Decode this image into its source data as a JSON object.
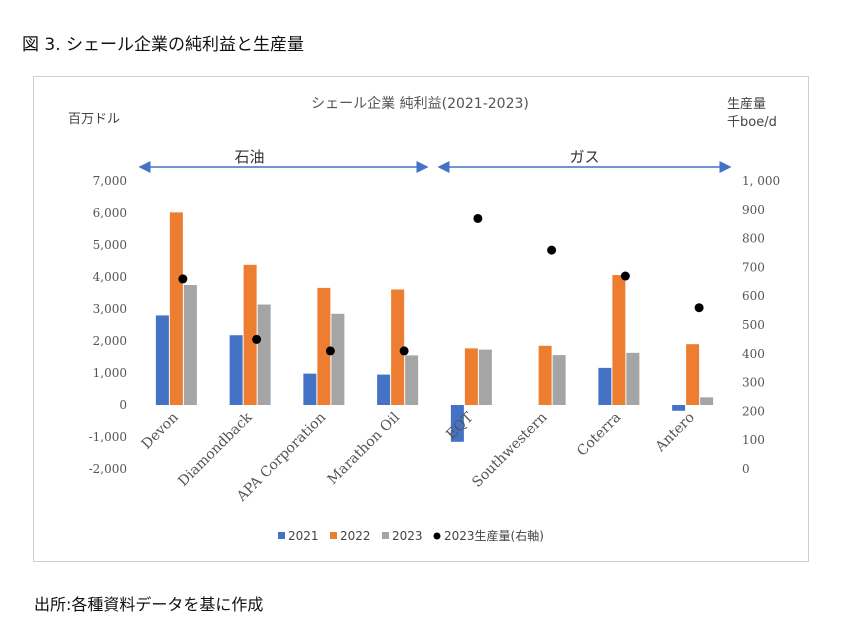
{
  "figure_title": "図 3. シェール企業の純利益と生産量",
  "source": "出所:各種資料データを基に作成",
  "colors": {
    "s2021": "#4472C4",
    "s2022": "#ED7D31",
    "s2023": "#A5A5A5",
    "dot": "#000000",
    "arrow": "#4472C4"
  },
  "chart_data": {
    "type": "bar",
    "title": "シェール企業  純利益(2021-2023)",
    "ylabel": "百万ドル",
    "y2label_line1": "生産量",
    "y2label_line2": "千boe/d",
    "ylim": [
      -2000,
      7000
    ],
    "y2lim": [
      0,
      1000
    ],
    "yticks": [
      "7,000",
      "6,000",
      "5,000",
      "4,000",
      "3,000",
      "2,000",
      "1,000",
      "0",
      "-1,000",
      "-2,000"
    ],
    "y2ticks": [
      "1, 000",
      "900",
      "800",
      "700",
      "600",
      "500",
      "400",
      "300",
      "200",
      "100",
      "0"
    ],
    "categories": [
      "Devon",
      "Diamondback",
      "APA Corporation",
      "Marathon Oil",
      "EQT",
      "Southwestern",
      "Coterra",
      "Antero"
    ],
    "groups": [
      {
        "label": "石油",
        "from": 0,
        "to": 3
      },
      {
        "label": "ガス",
        "from": 4,
        "to": 7
      }
    ],
    "series": [
      {
        "name": "2021",
        "values": [
          2800,
          2180,
          980,
          950,
          -1150,
          null,
          1160,
          -180
        ]
      },
      {
        "name": "2022",
        "values": [
          6020,
          4380,
          3660,
          3610,
          1770,
          1850,
          4060,
          1900
        ]
      },
      {
        "name": "2023",
        "values": [
          3750,
          3140,
          2850,
          1550,
          1730,
          1560,
          1630,
          240
        ]
      }
    ],
    "production": {
      "name": "2023生産量(右軸)",
      "values": [
        660,
        450,
        410,
        410,
        870,
        760,
        670,
        560
      ]
    },
    "legend_position": "bottom",
    "grid": false
  }
}
